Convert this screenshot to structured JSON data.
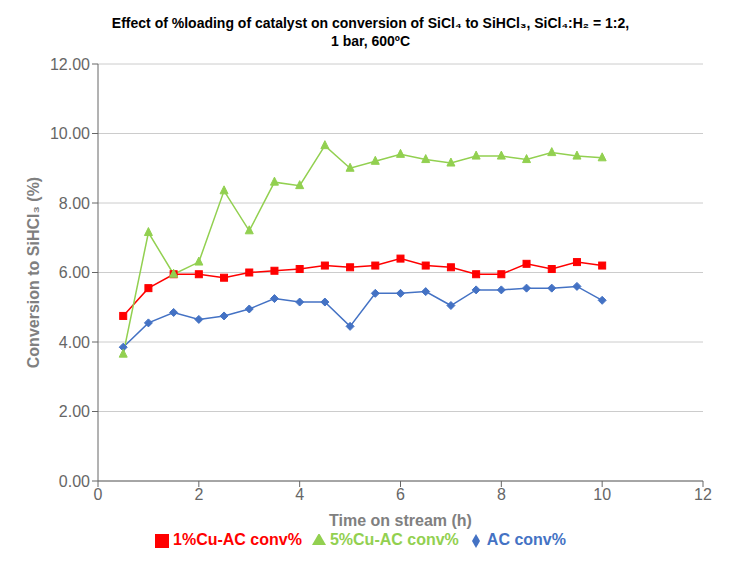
{
  "chart_data": {
    "type": "line",
    "title": "Effect of %loading of catalyst on conversion of SiCl₄ to SiHCl₃,​ SiCl₄:H₂ = 1:2,\n1 bar, 600ºC",
    "x_label": "Time on stream (h)",
    "y_label": "Conversion to SiHCl₃ (%)",
    "x": [
      0.5,
      1.0,
      1.5,
      2.0,
      2.5,
      3.0,
      3.5,
      4.0,
      4.5,
      5.0,
      5.5,
      6.0,
      6.5,
      7.0,
      7.5,
      8.0,
      8.5,
      9.0,
      9.5,
      10.0
    ],
    "series": [
      {
        "name": "AC conv%",
        "color": "#4472C4",
        "marker": "diamond",
        "values": [
          3.85,
          4.55,
          4.85,
          4.65,
          4.75,
          4.95,
          5.25,
          5.15,
          5.15,
          4.45,
          5.4,
          5.4,
          5.45,
          5.05,
          5.5,
          5.5,
          5.55,
          5.55,
          5.6,
          5.2
        ]
      },
      {
        "name": "1%Cu-AC conv%",
        "color": "#FF0000",
        "marker": "square",
        "values": [
          4.75,
          5.55,
          5.95,
          5.95,
          5.85,
          6.0,
          6.05,
          6.1,
          6.2,
          6.15,
          6.2,
          6.4,
          6.2,
          6.15,
          5.95,
          5.95,
          6.25,
          6.1,
          6.3,
          6.2
        ]
      },
      {
        "name": "5%Cu-AC conv%",
        "color": "#92D050",
        "marker": "triangle",
        "values": [
          3.65,
          7.15,
          5.95,
          6.3,
          8.35,
          7.2,
          8.6,
          8.5,
          9.65,
          9.0,
          9.2,
          9.4,
          9.25,
          9.15,
          9.35,
          9.35,
          9.25,
          9.45,
          9.35,
          9.3
        ]
      }
    ],
    "xlim": [
      0,
      12
    ],
    "xticks": [
      0,
      2,
      4,
      6,
      8,
      10,
      12
    ],
    "ylim": [
      0,
      12
    ],
    "yticks": [
      {
        "value": 0,
        "label": "0.00"
      },
      {
        "value": 2,
        "label": "2.00"
      },
      {
        "value": 4,
        "label": "4.00"
      },
      {
        "value": 6,
        "label": "6.00"
      },
      {
        "value": 8,
        "label": "8.00"
      },
      {
        "value": 10,
        "label": "10.00"
      },
      {
        "value": 12,
        "label": "12.00"
      }
    ],
    "grid": "y",
    "legend": "bottom"
  }
}
